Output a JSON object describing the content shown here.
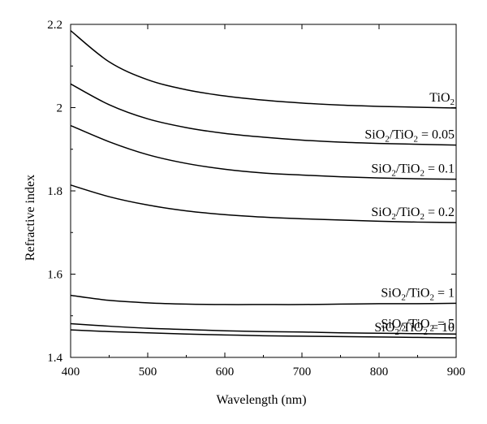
{
  "chart_data": {
    "type": "line",
    "title": "",
    "xlabel": "Wavelength (nm)",
    "ylabel": "Refractive index",
    "xlim": [
      400,
      900
    ],
    "ylim": [
      1.4,
      2.2
    ],
    "xticks": [
      "400",
      "500",
      "600",
      "700",
      "800",
      "900"
    ],
    "yticks": [
      "1.4",
      "1.6",
      "1.8",
      "2",
      "2.2"
    ],
    "grid": false,
    "legend": "inline-right",
    "x": [
      400,
      450,
      500,
      550,
      600,
      650,
      700,
      750,
      800,
      850,
      900
    ],
    "series": [
      {
        "name": "TiO2",
        "name_main": "TiO",
        "name_sub": "2",
        "name_suffix": "",
        "values": [
          2.185,
          2.11,
          2.067,
          2.043,
          2.028,
          2.018,
          2.011,
          2.006,
          2.003,
          2.001,
          1.999
        ]
      },
      {
        "name": "SiO2/TiO2 = 0.05",
        "name_main": "SiO",
        "name_sub": "2",
        "name_mid": "/TiO",
        "name_sub2": "2",
        "name_suffix": " = 0.05",
        "values": [
          2.057,
          2.007,
          1.973,
          1.952,
          1.938,
          1.929,
          1.922,
          1.917,
          1.914,
          1.912,
          1.91
        ]
      },
      {
        "name": "SiO2/TiO2 = 0.1",
        "name_main": "SiO",
        "name_sub": "2",
        "name_mid": "/TiO",
        "name_sub2": "2",
        "name_suffix": " = 0.1",
        "values": [
          1.957,
          1.918,
          1.887,
          1.866,
          1.852,
          1.843,
          1.838,
          1.834,
          1.831,
          1.829,
          1.828
        ]
      },
      {
        "name": "SiO2/TiO2 = 0.2",
        "name_main": "SiO",
        "name_sub": "2",
        "name_mid": "/TiO",
        "name_sub2": "2",
        "name_suffix": " = 0.2",
        "values": [
          1.814,
          1.786,
          1.766,
          1.752,
          1.743,
          1.737,
          1.733,
          1.73,
          1.727,
          1.725,
          1.724
        ]
      },
      {
        "name": "SiO2/TiO2 = 1",
        "name_main": "SiO",
        "name_sub": "2",
        "name_mid": "/TiO",
        "name_sub2": "2",
        "name_suffix": " = 1",
        "values": [
          1.549,
          1.537,
          1.531,
          1.528,
          1.527,
          1.527,
          1.527,
          1.528,
          1.529,
          1.529,
          1.53
        ]
      },
      {
        "name": "SiO2/TiO2 = 5",
        "name_main": "SiO",
        "name_sub": "2",
        "name_mid": "/TiO",
        "name_sub2": "2",
        "name_suffix": " = 5",
        "values": [
          1.481,
          1.475,
          1.47,
          1.467,
          1.464,
          1.462,
          1.461,
          1.459,
          1.458,
          1.457,
          1.456
        ]
      },
      {
        "name": "SiO2/TiO2 = 10",
        "name_main": "SiO",
        "name_sub": "2",
        "name_mid": "/TiO",
        "name_sub2": "2",
        "name_suffix": " = 10",
        "values": [
          1.466,
          1.462,
          1.459,
          1.456,
          1.454,
          1.452,
          1.451,
          1.45,
          1.449,
          1.448,
          1.447
        ]
      }
    ]
  }
}
